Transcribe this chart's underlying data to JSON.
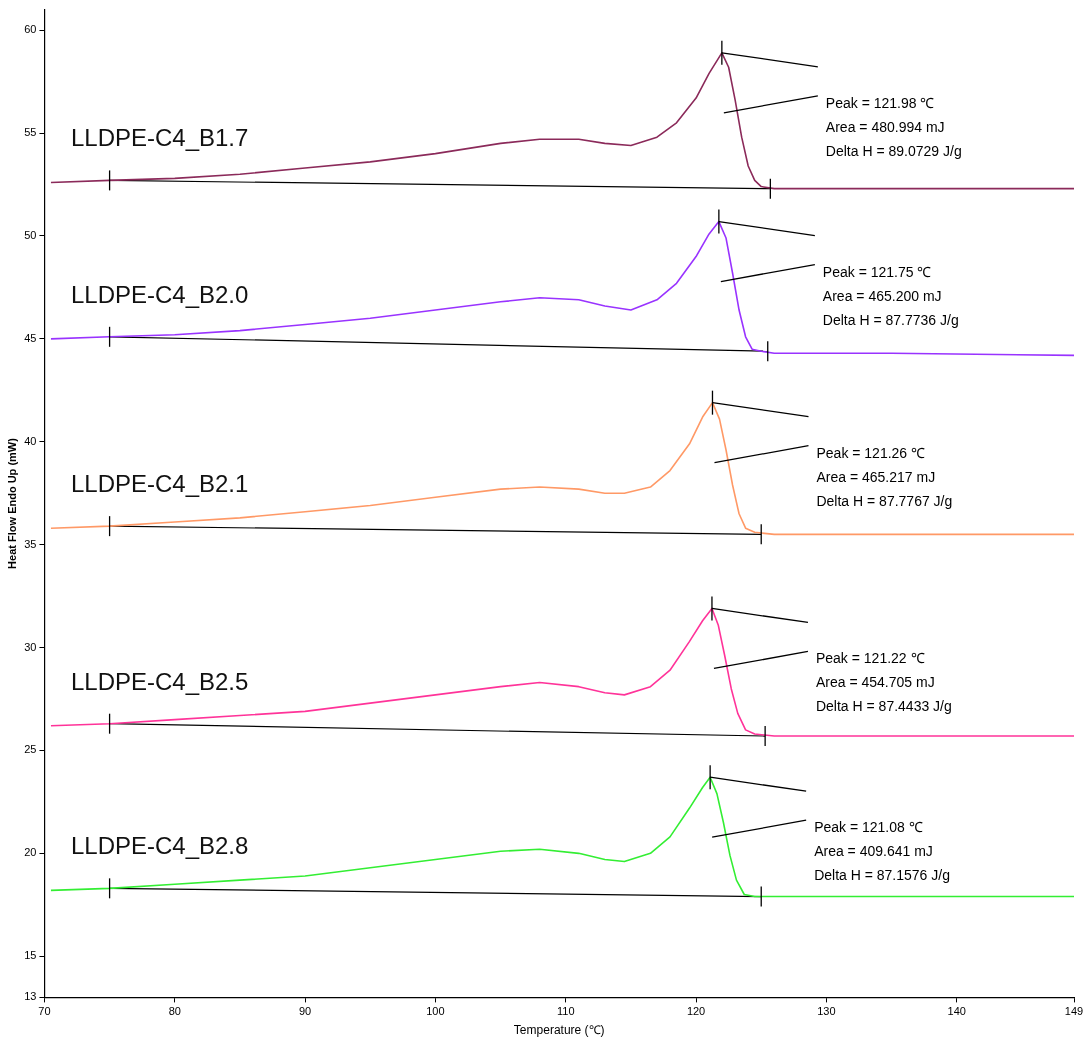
{
  "chart_data": {
    "type": "line",
    "xlabel": "Temperature (℃)",
    "ylabel": "Heat Flow Endo Up (mW)",
    "xlim": [
      70,
      149
    ],
    "xticks": [
      70,
      80,
      90,
      100,
      110,
      120,
      130,
      140,
      149
    ],
    "ylim": [
      13,
      61
    ],
    "yticks": [
      13,
      15,
      20,
      25,
      30,
      35,
      40,
      45,
      50,
      55,
      60
    ],
    "grid": false,
    "legend": false,
    "marker": "none",
    "series": [
      {
        "name": "LLDPE-C4_B1.7",
        "color": "#8b2a5a",
        "x": [
          70.5,
          75,
          80,
          85,
          90,
          95,
          100,
          105,
          108,
          111,
          113,
          115,
          117,
          118.5,
          120,
          121,
          121.98,
          122.5,
          123,
          123.5,
          124,
          124.5,
          125,
          126,
          135,
          149
        ],
        "values": [
          52.6,
          52.7,
          52.8,
          53.0,
          53.3,
          53.6,
          54.0,
          54.5,
          54.7,
          54.7,
          54.5,
          54.4,
          54.8,
          55.5,
          56.7,
          57.9,
          58.9,
          58.2,
          56.6,
          54.8,
          53.4,
          52.7,
          52.4,
          52.3,
          52.3,
          52.3
        ]
      },
      {
        "name": "LLDPE-C4_B2.0",
        "color": "#9933ff",
        "x": [
          70.5,
          75,
          80,
          85,
          90,
          95,
          100,
          105,
          108,
          111,
          113,
          115,
          117,
          118.5,
          120,
          121,
          121.75,
          122.3,
          122.8,
          123.3,
          123.8,
          124.3,
          125,
          126,
          135,
          149
        ],
        "values": [
          45.0,
          45.1,
          45.2,
          45.4,
          45.7,
          46.0,
          46.4,
          46.8,
          47.0,
          46.9,
          46.6,
          46.4,
          46.9,
          47.7,
          49.0,
          50.1,
          50.7,
          49.9,
          48.2,
          46.4,
          45.1,
          44.5,
          44.4,
          44.3,
          44.3,
          44.2
        ]
      },
      {
        "name": "LLDPE-C4_B2.1",
        "color": "#ff9966",
        "x": [
          70.5,
          75,
          80,
          85,
          90,
          95,
          100,
          105,
          108,
          111,
          113,
          114.5,
          116.5,
          118,
          119.5,
          120.5,
          121.26,
          121.8,
          122.3,
          122.8,
          123.3,
          123.8,
          124.5,
          126,
          135,
          149
        ],
        "values": [
          35.8,
          35.9,
          36.1,
          36.3,
          36.6,
          36.9,
          37.3,
          37.7,
          37.8,
          37.7,
          37.5,
          37.5,
          37.8,
          38.6,
          39.9,
          41.2,
          41.9,
          41.1,
          39.6,
          37.9,
          36.5,
          35.8,
          35.6,
          35.5,
          35.5,
          35.5
        ]
      },
      {
        "name": "LLDPE-C4_B2.5",
        "color": "#ff3399",
        "x": [
          70.5,
          75,
          80,
          85,
          90,
          95,
          100,
          105,
          108,
          111,
          113,
          114.5,
          116.5,
          118,
          119.5,
          120.5,
          121.22,
          121.7,
          122.2,
          122.7,
          123.2,
          123.8,
          124.5,
          126,
          135,
          149
        ],
        "values": [
          26.2,
          26.3,
          26.5,
          26.7,
          26.9,
          27.3,
          27.7,
          28.1,
          28.3,
          28.1,
          27.8,
          27.7,
          28.1,
          28.9,
          30.3,
          31.3,
          31.9,
          31.1,
          29.6,
          28.0,
          26.8,
          26.0,
          25.8,
          25.7,
          25.7,
          25.7
        ]
      },
      {
        "name": "LLDPE-C4_B2.8",
        "color": "#33ee33",
        "x": [
          70.5,
          75,
          80,
          85,
          90,
          95,
          100,
          105,
          108,
          111,
          113,
          114.5,
          116.5,
          118,
          119.5,
          120.5,
          121.08,
          121.6,
          122.1,
          122.6,
          123.1,
          123.7,
          124.5,
          126,
          135,
          149
        ],
        "values": [
          18.2,
          18.3,
          18.5,
          18.7,
          18.9,
          19.3,
          19.7,
          20.1,
          20.2,
          20.0,
          19.7,
          19.6,
          20.0,
          20.8,
          22.2,
          23.2,
          23.7,
          22.9,
          21.5,
          19.9,
          18.7,
          18.0,
          17.9,
          17.9,
          17.9,
          17.9
        ]
      },
      {
        "color": "#000000",
        "x": [
          75,
          125.7
        ],
        "values": [
          52.7,
          52.3
        ]
      },
      {
        "color": "#000000",
        "x": [
          75,
          125.5
        ],
        "values": [
          45.1,
          44.4
        ]
      },
      {
        "color": "#000000",
        "x": [
          75,
          125
        ],
        "values": [
          35.9,
          35.5
        ]
      },
      {
        "color": "#000000",
        "x": [
          75,
          125.3
        ],
        "values": [
          26.3,
          25.7
        ]
      },
      {
        "color": "#000000",
        "x": [
          75,
          125
        ],
        "values": [
          18.3,
          17.9
        ]
      }
    ],
    "annotations": [
      "Peak = 121.98 ℃\nArea = 480.994 mJ\nDelta H = 89.0729 J/g",
      "Peak = 121.75 ℃\nArea = 465.200 mJ\nDelta H = 87.7736 J/g",
      "Peak = 121.26 ℃\nArea = 465.217 mJ\nDelta H = 87.7767 J/g",
      "Peak = 121.22 ℃\nArea = 454.705 mJ\nDelta H = 87.4433 J/g",
      "Peak = 121.08 ℃\nArea = 409.641 mJ\nDelta H = 87.1576 J/g"
    ]
  }
}
